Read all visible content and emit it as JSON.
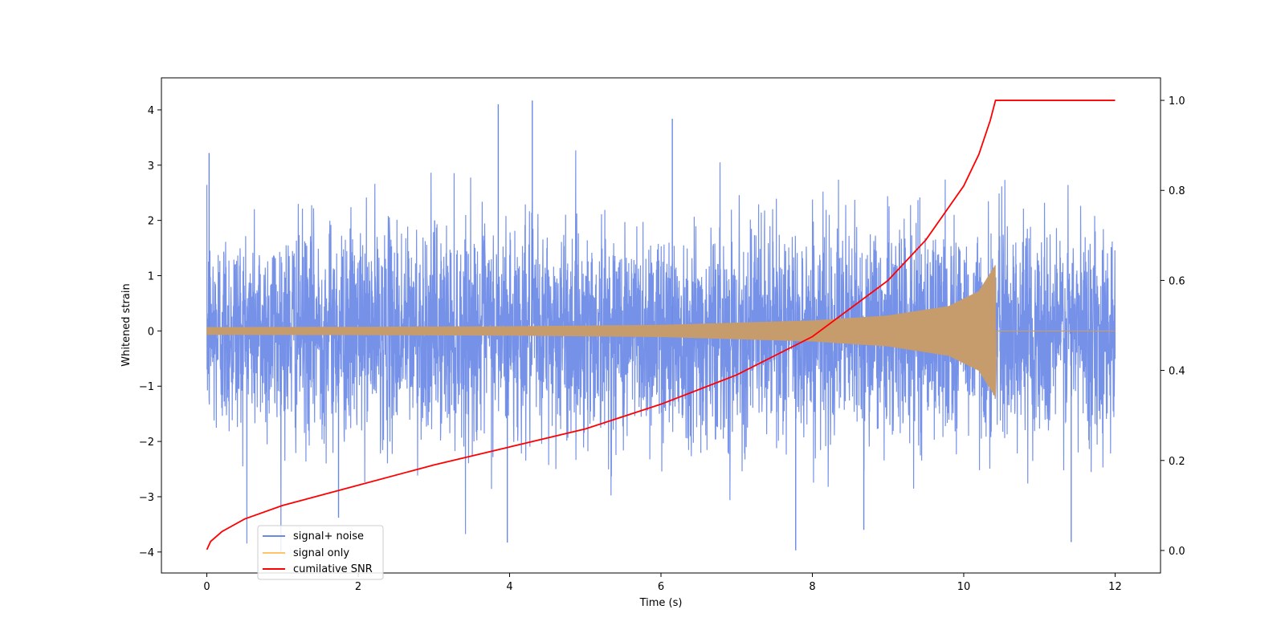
{
  "chart_data": {
    "type": "line",
    "title": "",
    "xlabel": "Time (s)",
    "ylabel": "Whitened strain",
    "y2label": "",
    "xlim": [
      -0.6,
      12.6
    ],
    "ylim": [
      -4.38,
      4.58
    ],
    "y2lim": [
      -0.05,
      1.05
    ],
    "xticks": [
      0,
      2,
      4,
      6,
      8,
      10,
      12
    ],
    "yticks": [
      -4,
      -3,
      -2,
      -1,
      0,
      1,
      2,
      3,
      4
    ],
    "y2ticks": [
      "0.0",
      "0.2",
      "0.4",
      "0.6",
      "0.8",
      "1.0"
    ],
    "grid": false,
    "legend_position": "lower-left",
    "merger_time": 10.42,
    "end_time": 12.0,
    "series": [
      {
        "name": "signal+ noise",
        "color": "#6a88e6",
        "axis": "left",
        "kind": "noise",
        "typical_range": [
          -2.0,
          2.0
        ],
        "extremes": [
          {
            "x": 0.03,
            "y": 3.22
          },
          {
            "x": 1.74,
            "y": -3.38
          },
          {
            "x": 3.85,
            "y": 4.1
          },
          {
            "x": 3.97,
            "y": -3.83
          },
          {
            "x": 4.3,
            "y": 4.17
          },
          {
            "x": 6.15,
            "y": 3.84
          },
          {
            "x": 7.78,
            "y": -3.97
          },
          {
            "x": 8.68,
            "y": -3.6
          },
          {
            "x": 11.42,
            "y": -3.82
          }
        ]
      },
      {
        "name": "signal only",
        "color": "#c69c6d",
        "legend_color": "#ffc46a",
        "axis": "left",
        "kind": "chirp",
        "envelope": [
          {
            "x": 0,
            "y": 0.07
          },
          {
            "x": 2,
            "y": 0.075
          },
          {
            "x": 4,
            "y": 0.085
          },
          {
            "x": 6,
            "y": 0.11
          },
          {
            "x": 8,
            "y": 0.19
          },
          {
            "x": 9,
            "y": 0.28
          },
          {
            "x": 9.8,
            "y": 0.45
          },
          {
            "x": 10.2,
            "y": 0.72
          },
          {
            "x": 10.42,
            "y": 1.2
          }
        ]
      },
      {
        "name": "cumilative SNR",
        "color": "#ff0000",
        "axis": "right",
        "kind": "line",
        "points": [
          {
            "x": 0,
            "y": 0.002
          },
          {
            "x": 0.05,
            "y": 0.02
          },
          {
            "x": 0.2,
            "y": 0.042
          },
          {
            "x": 0.5,
            "y": 0.07
          },
          {
            "x": 1,
            "y": 0.1
          },
          {
            "x": 2,
            "y": 0.145
          },
          {
            "x": 3,
            "y": 0.19
          },
          {
            "x": 4,
            "y": 0.23
          },
          {
            "x": 5,
            "y": 0.27
          },
          {
            "x": 6,
            "y": 0.325
          },
          {
            "x": 7,
            "y": 0.39
          },
          {
            "x": 8,
            "y": 0.475
          },
          {
            "x": 9,
            "y": 0.6
          },
          {
            "x": 9.5,
            "y": 0.69
          },
          {
            "x": 10,
            "y": 0.81
          },
          {
            "x": 10.2,
            "y": 0.88
          },
          {
            "x": 10.35,
            "y": 0.955
          },
          {
            "x": 10.42,
            "y": 1.0
          },
          {
            "x": 12.0,
            "y": 1.0
          }
        ]
      }
    ]
  }
}
